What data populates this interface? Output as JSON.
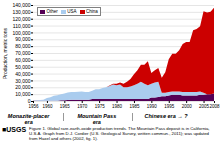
{
  "chart_data": {
    "type": "area",
    "stacked": true,
    "x": [
      1956,
      1957,
      1958,
      1959,
      1960,
      1961,
      1962,
      1963,
      1964,
      1965,
      1966,
      1967,
      1968,
      1969,
      1970,
      1971,
      1972,
      1973,
      1974,
      1975,
      1976,
      1977,
      1978,
      1979,
      1980,
      1981,
      1982,
      1983,
      1984,
      1985,
      1986,
      1987,
      1988,
      1989,
      1990,
      1991,
      1992,
      1993,
      1994,
      1995,
      1996,
      1997,
      1998,
      1999,
      2000,
      2001,
      2002,
      2003,
      2004,
      2005,
      2006,
      2007,
      2008
    ],
    "series": [
      {
        "name": "Other",
        "color": "#550055",
        "values": [
          500,
          500,
          500,
          500,
          500,
          500,
          500,
          500,
          1000,
          1000,
          1500,
          2000,
          2000,
          2000,
          2000,
          2000,
          2000,
          3000,
          3000,
          3000,
          3000,
          3000,
          3000,
          3000,
          3000,
          3000,
          3000,
          3000,
          3000,
          3000,
          3000,
          3000,
          3000,
          3000,
          5000,
          5000,
          6000,
          7000,
          7000,
          8000,
          9000,
          9000,
          9000,
          8000,
          8000,
          8000,
          8000,
          8000,
          9000,
          9000,
          10000,
          10000,
          11000
        ]
      },
      {
        "name": "USA",
        "color": "#aaccee",
        "values": [
          0,
          500,
          1000,
          1500,
          4000,
          5000,
          7000,
          8000,
          9000,
          10000,
          11000,
          11000,
          11000,
          11500,
          12000,
          11000,
          11000,
          12000,
          14000,
          14000,
          16000,
          17000,
          19000,
          21000,
          20000,
          21000,
          17000,
          17000,
          18000,
          20000,
          22000,
          25000,
          22000,
          20000,
          20000,
          22000,
          22000,
          5000,
          5000,
          5000,
          5000,
          5000,
          5000,
          5000,
          5000,
          5000,
          5000,
          5000,
          5000,
          3000,
          0,
          0,
          0
        ]
      },
      {
        "name": "China",
        "color": "#cc0000",
        "values": [
          0,
          0,
          0,
          0,
          0,
          0,
          0,
          0,
          0,
          0,
          0,
          0,
          0,
          0,
          0,
          0,
          0,
          0,
          0,
          0,
          0,
          0,
          500,
          1000,
          2000,
          3000,
          5000,
          8000,
          11000,
          16000,
          20000,
          25000,
          28000,
          35000,
          16000,
          18000,
          20000,
          22000,
          30000,
          48000,
          55000,
          55000,
          60000,
          70000,
          73000,
          73000,
          90000,
          92000,
          95000,
          119000,
          119000,
          120000,
          125000
        ]
      }
    ],
    "xlim": [
      1956,
      2008
    ],
    "xticks": [
      1956,
      1960,
      1965,
      1970,
      1975,
      1980,
      1985,
      1990,
      1995,
      2000,
      2005,
      2008
    ],
    "ylim": [
      0,
      140000
    ],
    "yticks": [
      0,
      {
        "value": 10000,
        "label": "10,000"
      },
      {
        "value": 20000,
        "label": "20,000"
      },
      {
        "value": 30000,
        "label": "30,000"
      },
      {
        "value": 40000,
        "label": "40,000"
      },
      {
        "value": 50000,
        "label": "50,000"
      },
      {
        "value": 60000,
        "label": "60,000"
      },
      {
        "value": 70000,
        "label": "70,000"
      },
      {
        "value": 80000,
        "label": "80,000"
      },
      {
        "value": 90000,
        "label": "90,000"
      },
      {
        "value": 100000,
        "label": "100,000"
      },
      {
        "value": 110000,
        "label": "110,000"
      },
      {
        "value": 120000,
        "label": "120,000"
      },
      {
        "value": 130000,
        "label": "130,000"
      },
      {
        "value": 140000,
        "label": "140,000"
      }
    ],
    "ylabel": "Production, metric tons",
    "grid": "y",
    "legend": "upper left",
    "annotations": [
      "Monazite-placer\nera",
      "Mountain Pass\nera",
      "Chinese era → ?",
      "■USGS"
    ],
    "caption": "Figure 1.  Global rare-earth-oxide production trends. The Mountain Pass deposit is in California, U.S.A. Graph from D.J. Cordier (U.S. Geological Survey, written commun., 2011); was updated from Haxel and others (2002, fig. 1)."
  }
}
